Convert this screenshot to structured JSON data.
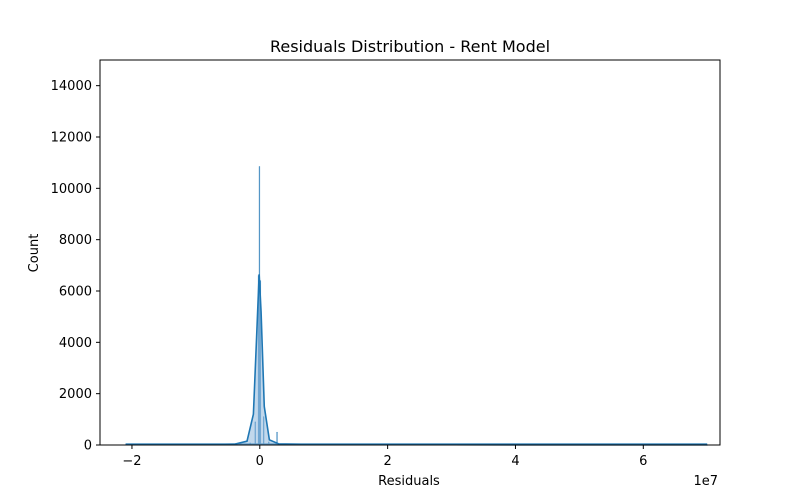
{
  "chart_data": {
    "type": "histogram",
    "title": "Residuals Distribution - Rent Model",
    "xlabel": "Residuals",
    "ylabel": "Count",
    "x_offset_label": "1e7",
    "xlim": [
      -2.5,
      7.2
    ],
    "ylim": [
      0,
      15000
    ],
    "x_ticks": [
      -2,
      0,
      2,
      4,
      6
    ],
    "x_tick_labels": [
      "−2",
      "0",
      "2",
      "4",
      "6"
    ],
    "y_ticks": [
      0,
      2000,
      4000,
      6000,
      8000,
      10000,
      12000,
      14000
    ],
    "y_tick_labels": [
      "0",
      "2000",
      "4000",
      "6000",
      "8000",
      "10000",
      "12000",
      "14000"
    ],
    "grid": false,
    "colors": {
      "bar_fill": "#8fb8dc",
      "bar_edge": "#1f77b4",
      "kde_line": "#1f77b4"
    },
    "bins": [
      {
        "x": -2.05,
        "count": 15
      },
      {
        "x": -1.5,
        "count": 10
      },
      {
        "x": -1.0,
        "count": 15
      },
      {
        "x": -0.5,
        "count": 20
      },
      {
        "x": -0.15,
        "count": 80
      },
      {
        "x": -0.07,
        "count": 900
      },
      {
        "x": -0.02,
        "count": 6600
      },
      {
        "x": -0.005,
        "count": 10850
      },
      {
        "x": 0.01,
        "count": 6400
      },
      {
        "x": 0.06,
        "count": 1100
      },
      {
        "x": 0.14,
        "count": 120
      },
      {
        "x": 0.28,
        "count": 40
      },
      {
        "x": 0.27,
        "count": 500
      },
      {
        "x": 0.6,
        "count": 30
      },
      {
        "x": 1.0,
        "count": 15
      },
      {
        "x": 2.0,
        "count": 10
      },
      {
        "x": 4.0,
        "count": 5
      },
      {
        "x": 6.0,
        "count": 5
      },
      {
        "x": 7.0,
        "count": 5
      }
    ],
    "kde": [
      {
        "x": -2.1,
        "y": 10
      },
      {
        "x": -1.0,
        "y": 15
      },
      {
        "x": -0.4,
        "y": 30
      },
      {
        "x": -0.2,
        "y": 150
      },
      {
        "x": -0.1,
        "y": 1200
      },
      {
        "x": -0.05,
        "y": 4200
      },
      {
        "x": -0.01,
        "y": 6650
      },
      {
        "x": 0.02,
        "y": 5200
      },
      {
        "x": 0.07,
        "y": 1500
      },
      {
        "x": 0.15,
        "y": 200
      },
      {
        "x": 0.3,
        "y": 40
      },
      {
        "x": 1.0,
        "y": 15
      },
      {
        "x": 3.0,
        "y": 10
      },
      {
        "x": 7.0,
        "y": 5
      }
    ]
  }
}
